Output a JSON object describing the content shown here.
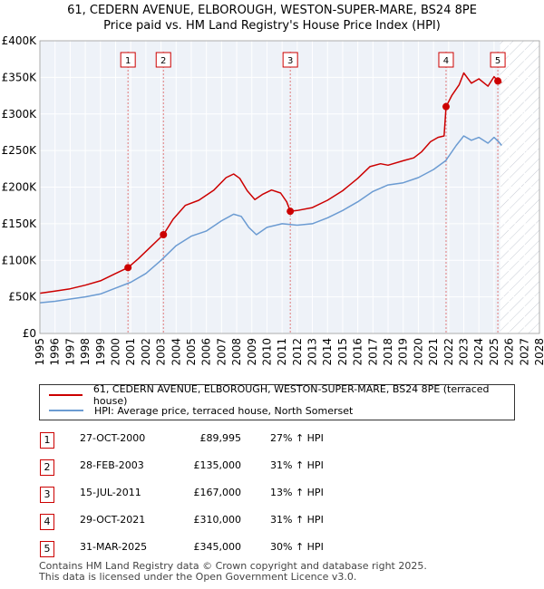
{
  "chart_data": {
    "type": "line",
    "title": "61, CEDERN AVENUE, ELBOROUGH, WESTON-SUPER-MARE, BS24 8PE",
    "subtitle": "Price paid vs. HM Land Registry's House Price Index (HPI)",
    "ylim": [
      0,
      400000
    ],
    "xlim": [
      1995,
      2028
    ],
    "y_ticks": [
      0,
      50000,
      100000,
      150000,
      200000,
      250000,
      300000,
      350000,
      400000
    ],
    "y_tick_labels": [
      "£0",
      "£50K",
      "£100K",
      "£150K",
      "£200K",
      "£250K",
      "£300K",
      "£350K",
      "£400K"
    ],
    "x_ticks": [
      1995,
      1996,
      1997,
      1998,
      1999,
      2000,
      2001,
      2002,
      2003,
      2004,
      2005,
      2006,
      2007,
      2008,
      2009,
      2010,
      2011,
      2012,
      2013,
      2014,
      2015,
      2016,
      2017,
      2018,
      2019,
      2020,
      2021,
      2022,
      2023,
      2024,
      2025,
      2026,
      2027,
      2028
    ],
    "forecast_start": 2025.4,
    "series": [
      {
        "name": "61, CEDERN AVENUE, ELBOROUGH, WESTON-SUPER-MARE, BS24 8PE (terraced house)",
        "color": "#cc0000",
        "x": [
          1995.0,
          1996.0,
          1997.0,
          1998.0,
          1999.0,
          2000.0,
          2000.82,
          2001.5,
          2002.3,
          2003.16,
          2003.8,
          2004.6,
          2005.5,
          2006.5,
          2007.3,
          2007.8,
          2008.2,
          2008.7,
          2009.2,
          2009.7,
          2010.3,
          2010.9,
          2011.3,
          2011.54,
          2012.0,
          2013.0,
          2014.0,
          2015.0,
          2016.0,
          2016.8,
          2017.5,
          2018.0,
          2019.0,
          2019.7,
          2020.2,
          2020.8,
          2021.3,
          2021.7,
          2021.83,
          2022.2,
          2022.7,
          2023.0,
          2023.5,
          2024.0,
          2024.6,
          2025.0,
          2025.25,
          2025.5
        ],
        "y": [
          55000,
          58000,
          61000,
          66000,
          72000,
          82000,
          89995,
          102000,
          118000,
          135000,
          156000,
          175000,
          182000,
          196000,
          213000,
          218000,
          212000,
          195000,
          183000,
          190000,
          196000,
          192000,
          180000,
          167000,
          168000,
          172000,
          182000,
          195000,
          212000,
          228000,
          232000,
          230000,
          236000,
          240000,
          248000,
          262000,
          268000,
          270000,
          310000,
          325000,
          340000,
          356000,
          342000,
          348000,
          338000,
          351000,
          345000,
          343000
        ]
      },
      {
        "name": "HPI: Average price, terraced house, North Somerset",
        "color": "#6b9bd2",
        "x": [
          1995.0,
          1996.0,
          1997.0,
          1998.0,
          1999.0,
          2000.0,
          2001.0,
          2002.0,
          2003.0,
          2004.0,
          2005.0,
          2006.0,
          2007.0,
          2007.8,
          2008.3,
          2008.8,
          2009.3,
          2010.0,
          2011.0,
          2012.0,
          2013.0,
          2014.0,
          2015.0,
          2016.0,
          2017.0,
          2018.0,
          2019.0,
          2020.0,
          2021.0,
          2021.8,
          2022.5,
          2023.0,
          2023.5,
          2024.0,
          2024.6,
          2025.0,
          2025.3,
          2025.5
        ],
        "y": [
          42000,
          44000,
          47000,
          50000,
          54000,
          62000,
          70000,
          82000,
          100000,
          120000,
          133000,
          140000,
          154000,
          163000,
          160000,
          145000,
          135000,
          145000,
          150000,
          148000,
          150000,
          158000,
          168000,
          180000,
          194000,
          203000,
          206000,
          213000,
          224000,
          236000,
          257000,
          270000,
          264000,
          268000,
          260000,
          268000,
          262000,
          257000
        ]
      }
    ],
    "sales": [
      {
        "num": "1",
        "x": 2000.82,
        "y": 89995,
        "date": "27-OCT-2000",
        "price": "£89,995",
        "hpi": "27% ↑ HPI"
      },
      {
        "num": "2",
        "x": 2003.16,
        "y": 135000,
        "date": "28-FEB-2003",
        "price": "£135,000",
        "hpi": "31% ↑ HPI"
      },
      {
        "num": "3",
        "x": 2011.54,
        "y": 167000,
        "date": "15-JUL-2011",
        "price": "£167,000",
        "hpi": "13% ↑ HPI"
      },
      {
        "num": "4",
        "x": 2021.83,
        "y": 310000,
        "date": "29-OCT-2021",
        "price": "£310,000",
        "hpi": "31% ↑ HPI"
      },
      {
        "num": "5",
        "x": 2025.25,
        "y": 345000,
        "date": "31-MAR-2025",
        "price": "£345,000",
        "hpi": "30% ↑ HPI"
      }
    ]
  },
  "footer": {
    "line1": "Contains HM Land Registry data © Crown copyright and database right 2025.",
    "line2": "This data is licensed under the Open Government Licence v3.0."
  }
}
